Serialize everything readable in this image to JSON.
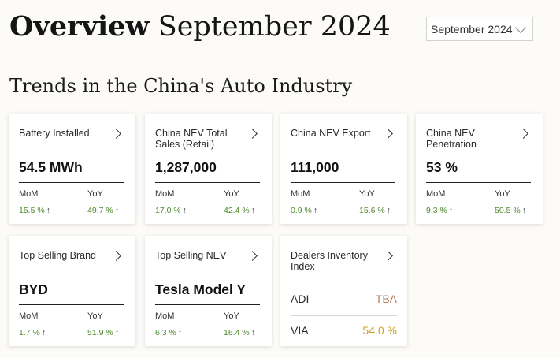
{
  "header": {
    "title_bold": "Overview",
    "title_rest": "September 2024",
    "month_select": "September 2024"
  },
  "section_title": "Trends in the China's Auto Industry",
  "colors": {
    "positive": "#4f8a2c",
    "adi": "#b47a5a",
    "via": "#c9a227"
  },
  "cards": [
    {
      "title": "Battery Installed",
      "value": "54.5 MWh",
      "mom_label": "MoM",
      "yoy_label": "YoY",
      "mom": "15.5 %",
      "yoy": "49.7 %",
      "trend": "↑"
    },
    {
      "title": "China NEV Total Sales (Retail)",
      "value": "1,287,000",
      "mom_label": "MoM",
      "yoy_label": "YoY",
      "mom": "17.0 %",
      "yoy": "42.4 %",
      "trend": "↑"
    },
    {
      "title": "China NEV Export",
      "value": "111,000",
      "mom_label": "MoM",
      "yoy_label": "YoY",
      "mom": "0.9 %",
      "yoy": "15.6 %",
      "trend": "↑"
    },
    {
      "title": "China NEV Penetration",
      "value": "53 %",
      "mom_label": "MoM",
      "yoy_label": "YoY",
      "mom": "9.3 %",
      "yoy": "50.5 %",
      "trend": "↑"
    },
    {
      "title": "Top Selling Brand",
      "value": "BYD",
      "mom_label": "MoM",
      "yoy_label": "YoY",
      "mom": "1.7 %",
      "yoy": "51.9 %",
      "trend": "↑"
    },
    {
      "title": "Top Selling NEV",
      "value": "Tesla Model Y",
      "mom_label": "MoM",
      "yoy_label": "YoY",
      "mom": "6.3 %",
      "yoy": "16.4 %",
      "trend": "↑"
    }
  ],
  "dealers_card": {
    "title": "Dealers Inventory Index",
    "adi_label": "ADI",
    "adi_value": "TBA",
    "via_label": "VIA",
    "via_value": "54.0 %"
  }
}
